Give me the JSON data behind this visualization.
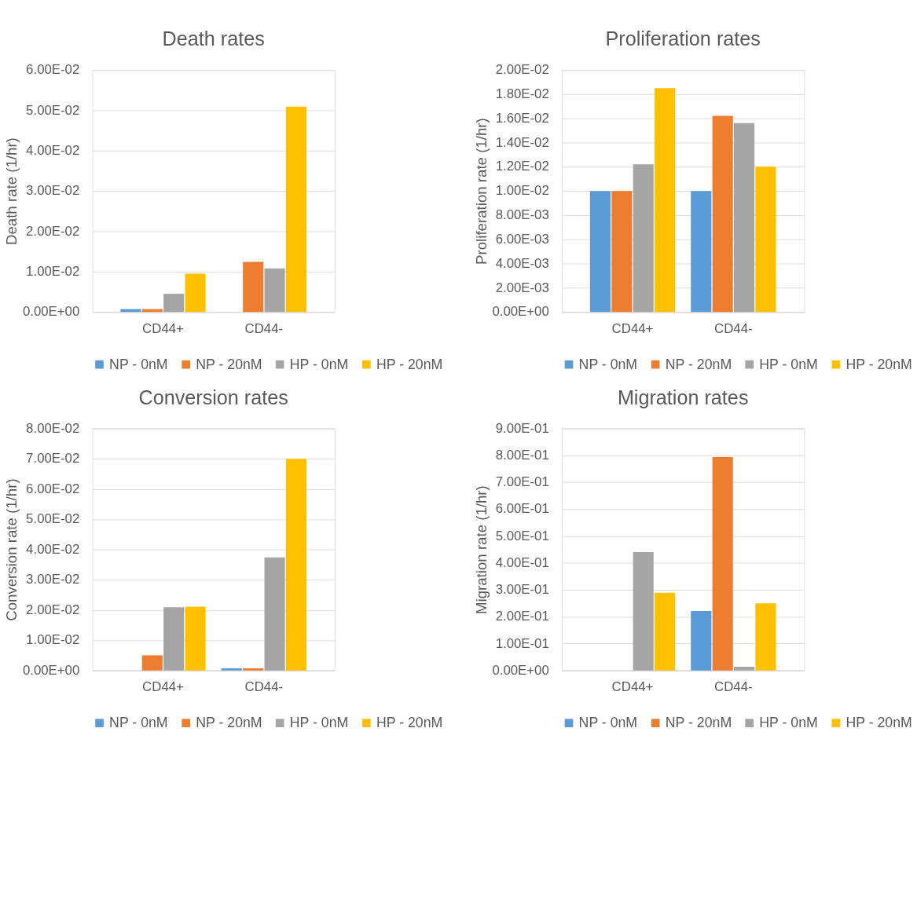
{
  "chart_data": [
    {
      "type": "bar",
      "title": "Death rates",
      "ylabel": "Death rate (1/hr)",
      "categories": [
        "CD44+",
        "CD44-"
      ],
      "series": [
        {
          "name": "NP - 0nM",
          "color": "#5b9bd5",
          "values": [
            0.0007,
            0
          ]
        },
        {
          "name": "NP - 20nM",
          "color": "#ed7d31",
          "values": [
            0.0007,
            0.0124
          ]
        },
        {
          "name": "HP - 0nM",
          "color": "#a5a5a5",
          "values": [
            0.0045,
            0.0108
          ]
        },
        {
          "name": "HP - 20nM",
          "color": "#ffc000",
          "values": [
            0.0095,
            0.0509
          ]
        }
      ],
      "ylim": [
        0,
        0.06
      ],
      "yticks": [
        {
          "value": 0,
          "label": "0.00E+00"
        },
        {
          "value": 0.01,
          "label": "1.00E-02"
        },
        {
          "value": 0.02,
          "label": "2.00E-02"
        },
        {
          "value": 0.03,
          "label": "3.00E-02"
        },
        {
          "value": 0.04,
          "label": "4.00E-02"
        },
        {
          "value": 0.05,
          "label": "5.00E-02"
        },
        {
          "value": 0.06,
          "label": "6.00E-02"
        }
      ],
      "grid": "y",
      "legend": "bottom"
    },
    {
      "type": "bar",
      "title": "Proliferation rates",
      "ylabel": "Proliferation rate (1/hr)",
      "categories": [
        "CD44+",
        "CD44-"
      ],
      "series": [
        {
          "name": "NP - 0nM",
          "color": "#5b9bd5",
          "values": [
            0.01,
            0.01
          ]
        },
        {
          "name": "NP - 20nM",
          "color": "#ed7d31",
          "values": [
            0.01,
            0.0162
          ]
        },
        {
          "name": "HP - 0nM",
          "color": "#a5a5a5",
          "values": [
            0.0122,
            0.0156
          ]
        },
        {
          "name": "HP - 20nM",
          "color": "#ffc000",
          "values": [
            0.0185,
            0.012
          ]
        }
      ],
      "ylim": [
        0,
        0.02
      ],
      "yticks": [
        {
          "value": 0,
          "label": "0.00E+00"
        },
        {
          "value": 0.002,
          "label": "2.00E-03"
        },
        {
          "value": 0.004,
          "label": "4.00E-03"
        },
        {
          "value": 0.006,
          "label": "6.00E-03"
        },
        {
          "value": 0.008,
          "label": "8.00E-03"
        },
        {
          "value": 0.01,
          "label": "1.00E-02"
        },
        {
          "value": 0.012,
          "label": "1.20E-02"
        },
        {
          "value": 0.014,
          "label": "1.40E-02"
        },
        {
          "value": 0.016,
          "label": "1.60E-02"
        },
        {
          "value": 0.018,
          "label": "1.80E-02"
        },
        {
          "value": 0.02,
          "label": "2.00E-02"
        }
      ],
      "grid": "y",
      "legend": "bottom"
    },
    {
      "type": "bar",
      "title": "Conversion rates",
      "ylabel": "Conversion rate (1/hr)",
      "categories": [
        "CD44+",
        "CD44-"
      ],
      "series": [
        {
          "name": "NP - 0nM",
          "color": "#5b9bd5",
          "values": [
            0,
            0.0007
          ]
        },
        {
          "name": "NP - 20nM",
          "color": "#ed7d31",
          "values": [
            0.005,
            0.0007
          ]
        },
        {
          "name": "HP - 0nM",
          "color": "#a5a5a5",
          "values": [
            0.0209,
            0.0374
          ]
        },
        {
          "name": "HP - 20nM",
          "color": "#ffc000",
          "values": [
            0.0211,
            0.07
          ]
        }
      ],
      "ylim": [
        0,
        0.08
      ],
      "yticks": [
        {
          "value": 0,
          "label": "0.00E+00"
        },
        {
          "value": 0.01,
          "label": "1.00E-02"
        },
        {
          "value": 0.02,
          "label": "2.00E-02"
        },
        {
          "value": 0.03,
          "label": "3.00E-02"
        },
        {
          "value": 0.04,
          "label": "4.00E-02"
        },
        {
          "value": 0.05,
          "label": "5.00E-02"
        },
        {
          "value": 0.06,
          "label": "6.00E-02"
        },
        {
          "value": 0.07,
          "label": "7.00E-02"
        },
        {
          "value": 0.08,
          "label": "8.00E-02"
        }
      ],
      "grid": "y",
      "legend": "bottom"
    },
    {
      "type": "bar",
      "title": "Migration rates",
      "ylabel": "Migration rate (1/hr)",
      "categories": [
        "CD44+",
        "CD44-"
      ],
      "series": [
        {
          "name": "NP - 0nM",
          "color": "#5b9bd5",
          "values": [
            0,
            0.221
          ]
        },
        {
          "name": "NP - 20nM",
          "color": "#ed7d31",
          "values": [
            0,
            0.794
          ]
        },
        {
          "name": "HP - 0nM",
          "color": "#a5a5a5",
          "values": [
            0.44,
            0.014
          ]
        },
        {
          "name": "HP - 20nM",
          "color": "#ffc000",
          "values": [
            0.289,
            0.25
          ]
        }
      ],
      "ylim": [
        0,
        0.9
      ],
      "yticks": [
        {
          "value": 0,
          "label": "0.00E+00"
        },
        {
          "value": 0.1,
          "label": "1.00E-01"
        },
        {
          "value": 0.2,
          "label": "2.00E-01"
        },
        {
          "value": 0.3,
          "label": "3.00E-01"
        },
        {
          "value": 0.4,
          "label": "4.00E-01"
        },
        {
          "value": 0.5,
          "label": "5.00E-01"
        },
        {
          "value": 0.6,
          "label": "6.00E-01"
        },
        {
          "value": 0.7,
          "label": "7.00E-01"
        },
        {
          "value": 0.8,
          "label": "8.00E-01"
        },
        {
          "value": 0.9,
          "label": "9.00E-01"
        }
      ],
      "grid": "y",
      "legend": "bottom"
    }
  ]
}
